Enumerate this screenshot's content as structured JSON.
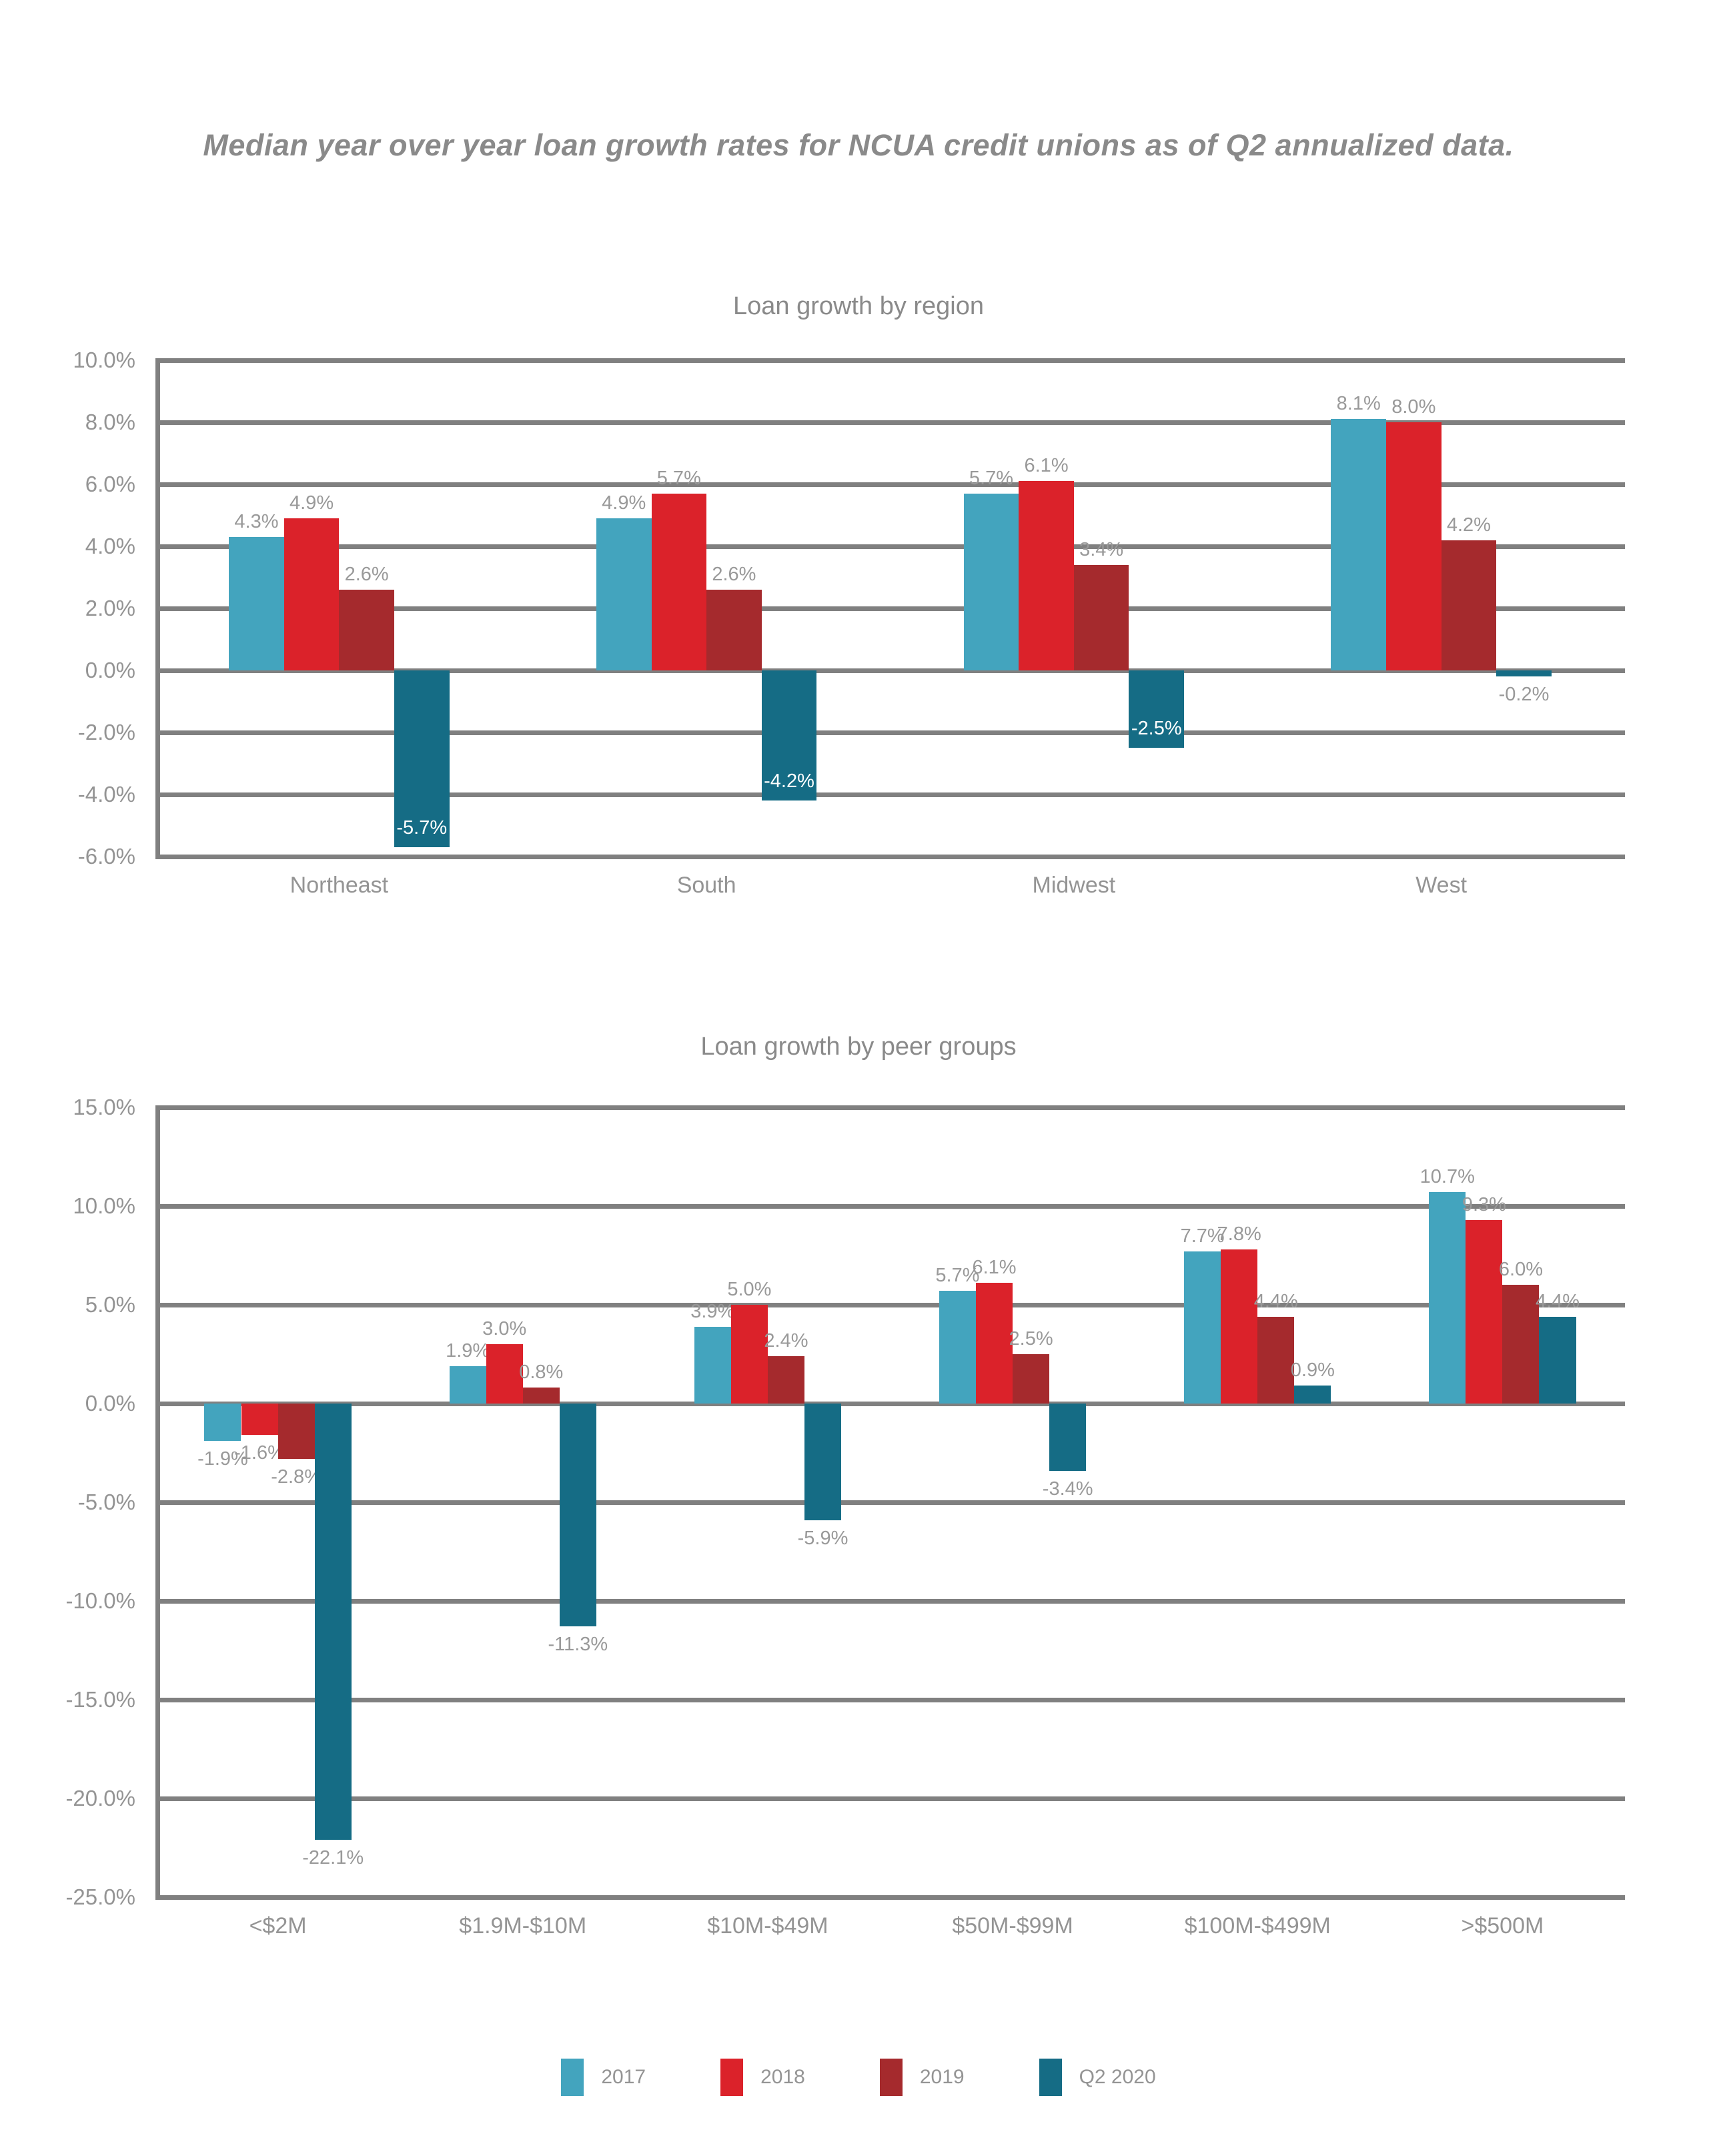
{
  "page": {
    "title": "Median year over year loan growth rates for NCUA credit unions as of Q2 annualized data."
  },
  "colors": {
    "series_2017": "#43A4BE",
    "series_2018": "#DB222A",
    "series_2019": "#A52A2D",
    "series_q2_2020": "#156C85",
    "gridline": "#808080",
    "tick_label": "#949494",
    "value_label": "#999999",
    "value_label_on_bar": "#ffffff",
    "title_text": "#8a8a8a"
  },
  "chart_data": [
    {
      "type": "bar",
      "title": "Loan growth by region",
      "categories": [
        "Northeast",
        "South",
        "Midwest",
        "West"
      ],
      "series": [
        {
          "name": "2017",
          "color": "#43A4BE",
          "values": [
            4.3,
            4.9,
            5.7,
            8.1
          ]
        },
        {
          "name": "2018",
          "color": "#DB222A",
          "values": [
            4.9,
            5.7,
            6.1,
            8.0
          ]
        },
        {
          "name": "2019",
          "color": "#A52A2D",
          "values": [
            2.6,
            2.6,
            3.4,
            4.2
          ]
        },
        {
          "name": "Q2 2020",
          "color": "#156C85",
          "values": [
            -5.7,
            -4.2,
            -2.5,
            -0.2
          ]
        }
      ],
      "ylim": [
        -6,
        10
      ],
      "ytick_step": 2,
      "grid": true,
      "negative_labels": "inside",
      "value_format": "percent_one_decimal",
      "legend_position": "none"
    },
    {
      "type": "bar",
      "title": "Loan growth by peer groups",
      "categories": [
        "<$2M",
        "$1.9M-$10M",
        "$10M-$49M",
        "$50M-$99M",
        "$100M-$499M",
        ">$500M"
      ],
      "series": [
        {
          "name": "2017",
          "color": "#43A4BE",
          "values": [
            -1.9,
            1.9,
            3.9,
            5.7,
            7.7,
            10.7
          ]
        },
        {
          "name": "2018",
          "color": "#DB222A",
          "values": [
            -1.6,
            3.0,
            5.0,
            6.1,
            7.8,
            9.3
          ]
        },
        {
          "name": "2019",
          "color": "#A52A2D",
          "values": [
            -2.8,
            0.8,
            2.4,
            2.5,
            4.4,
            6.0
          ]
        },
        {
          "name": "Q2 2020",
          "color": "#156C85",
          "values": [
            -22.1,
            -11.3,
            -5.9,
            -3.4,
            0.9,
            4.4
          ]
        }
      ],
      "ylim": [
        -25,
        15
      ],
      "ytick_step": 5,
      "grid": true,
      "negative_labels": "below",
      "value_format": "percent_one_decimal",
      "legend_position": "bottom"
    }
  ],
  "legend": {
    "items": [
      {
        "label": "2017",
        "color": "#43A4BE"
      },
      {
        "label": "2018",
        "color": "#DB222A"
      },
      {
        "label": "2019",
        "color": "#A52A2D"
      },
      {
        "label": "Q2 2020",
        "color": "#156C85"
      }
    ]
  }
}
